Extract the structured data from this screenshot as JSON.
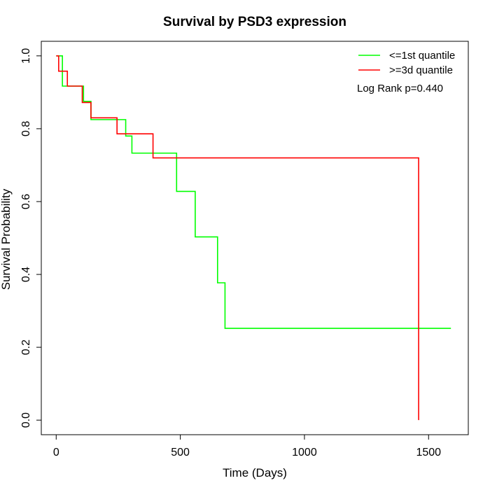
{
  "chart_data": {
    "type": "line",
    "title": "Survival by PSD3 expression",
    "xlabel": "Time (Days)",
    "ylabel": "Survival Probability",
    "xlim": [
      -60,
      1660
    ],
    "ylim": [
      -0.04,
      1.04
    ],
    "x_ticks": [
      0,
      500,
      1000,
      1500
    ],
    "y_ticks": [
      0.0,
      0.2,
      0.4,
      0.6,
      0.8,
      1.0
    ],
    "x_tick_labels": [
      "0",
      "500",
      "1000",
      "1500"
    ],
    "y_tick_labels": [
      "0.0",
      "0.2",
      "0.4",
      "0.6",
      "0.8",
      "1.0"
    ],
    "grid": false,
    "legend_position": "top-right",
    "annotation": "Log Rank p=0.440",
    "series": [
      {
        "name": "<=1st quantile",
        "color": "#00ff00",
        "step_x": [
          0,
          25,
          110,
          140,
          280,
          305,
          485,
          560,
          650,
          680,
          1590
        ],
        "step_y": [
          1.0,
          0.917,
          0.875,
          0.825,
          0.78,
          0.733,
          0.628,
          0.503,
          0.377,
          0.252,
          0.252
        ]
      },
      {
        "name": ">=3d quantile",
        "color": "#ff0000",
        "step_x": [
          0,
          10,
          45,
          105,
          140,
          245,
          390,
          1460,
          1460
        ],
        "step_y": [
          1.0,
          0.958,
          0.917,
          0.872,
          0.83,
          0.786,
          0.72,
          0.72,
          0.0
        ]
      }
    ]
  }
}
